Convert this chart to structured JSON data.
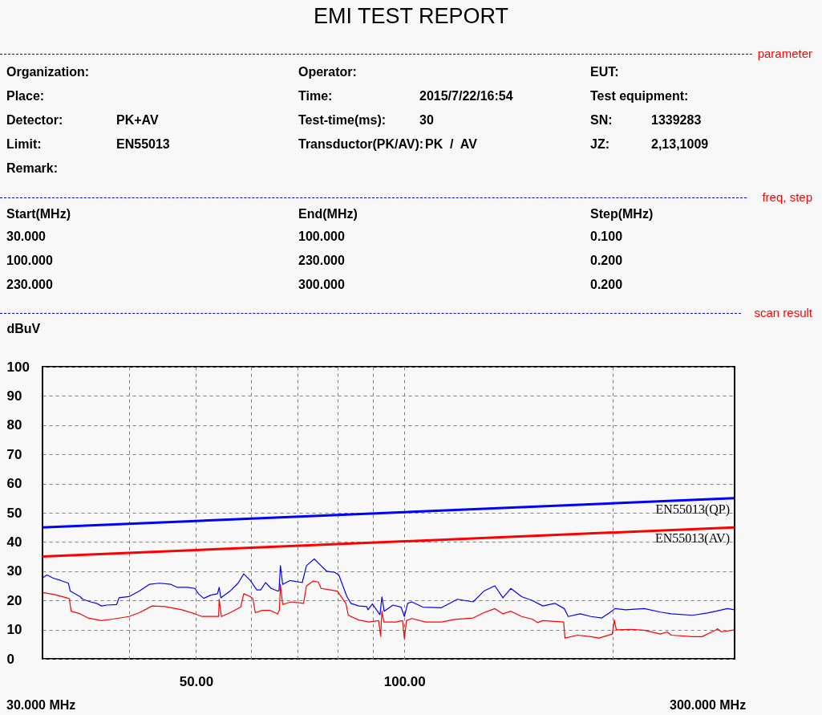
{
  "chart_data": {
    "type": "line",
    "title": "EMI TEST REPORT",
    "ylabel": "dBuV",
    "annotations": [
      "parameter",
      "Organization:",
      "Operator:",
      "EUT:",
      "Place:",
      "Time:",
      "2015/7/22/16:54",
      "Test equipment:",
      "Detector:",
      "PK+AV",
      "Test-time(ms):",
      "30",
      "SN:",
      "1339283",
      "Limit:",
      "EN55013",
      "Transductor(PK/AV):",
      "PK  /  AV",
      "JZ:",
      "2,13,1009",
      "Remark:",
      "freq, step",
      "Start(MHz)",
      "End(MHz)",
      "Step(MHz)",
      "30.000",
      "100.000",
      "0.100",
      "100.000",
      "230.000",
      "0.200",
      "230.000",
      "300.000",
      "0.200",
      "scan result",
      "30.000 MHz",
      "300.000 MHz"
    ],
    "xlim": [
      30,
      300
    ],
    "xticks": [
      {
        "value": 40,
        "label": null
      },
      {
        "value": 50,
        "label": "50.00"
      },
      {
        "value": 60,
        "label": null
      },
      {
        "value": 70,
        "label": null
      },
      {
        "value": 80,
        "label": null
      },
      {
        "value": 90,
        "label": null
      },
      {
        "value": 100,
        "label": "100.00"
      },
      {
        "value": 200,
        "label": null
      }
    ],
    "ylim": [
      0,
      100
    ],
    "yticks": [
      0,
      10,
      20,
      30,
      40,
      50,
      60,
      70,
      80,
      90,
      100
    ],
    "log": "x",
    "grid": true,
    "marker": "none",
    "line_style": "solid",
    "series": [
      {
        "name": "EN55013(QP)",
        "color": "#0000ff",
        "x": [
          30,
          300
        ],
        "values": [
          45,
          55
        ]
      },
      {
        "name": "EN55013(AV)",
        "color": "#ff0000",
        "x": [
          30,
          300
        ],
        "values": [
          35,
          45
        ]
      },
      {
        "color": "#0000ff",
        "x": [
          30,
          30.45,
          31.1,
          31.9,
          32.7,
          32.9,
          33.4,
          34.0,
          34.3,
          35.2,
          35.9,
          36.5,
          37.2,
          38.4,
          38.7,
          40.0,
          41.4,
          42.8,
          44.3,
          46.0,
          46.9,
          48.6,
          49.8,
          50.4,
          51.3,
          52.5,
          53.7,
          54.0,
          54.3,
          56.0,
          57.5,
          58.6,
          59.9,
          61.2,
          62.0,
          63.0,
          64.2,
          65.6,
          65.9,
          66.2,
          66.7,
          68.3,
          71.2,
          72.2,
          74.1,
          75.1,
          77.2,
          79.3,
          80.4,
          82.6,
          83.7,
          85.9,
          88.2,
          88.6,
          89.9,
          92.2,
          92.8,
          93.5,
          96.3,
          98.9,
          100,
          101.1,
          102.5,
          106.3,
          113.1,
          119.3,
          125.7,
          130.3,
          135.1,
          138.8,
          142.5,
          147.7,
          153.0,
          158.5,
          165.0,
          170.2,
          172.5,
          179.5,
          186.0,
          192.8,
          198.0,
          201.5,
          208.8,
          222.2,
          234.4,
          242.9,
          260.9,
          274.0,
          282.0,
          292.9,
          300
        ],
        "values": [
          27.7,
          28.7,
          27.6,
          26.8,
          25.9,
          23.2,
          22.3,
          21.3,
          20.4,
          19.5,
          19.0,
          18.1,
          18.4,
          18.6,
          20.9,
          21.3,
          23.2,
          25.5,
          25.9,
          25.5,
          24.5,
          24.5,
          24.1,
          22.3,
          20.7,
          21.8,
          22.3,
          24.5,
          20.9,
          23.2,
          25.9,
          29.1,
          26.8,
          23.6,
          23.6,
          26.1,
          24.1,
          23.2,
          23.4,
          31.9,
          25.5,
          26.8,
          26.1,
          31.9,
          34.2,
          32.8,
          30.0,
          29.6,
          28.7,
          21.3,
          19.0,
          18.1,
          17.9,
          16.8,
          18.8,
          15.1,
          21.2,
          16.3,
          18.4,
          17.7,
          14.5,
          19.0,
          19.5,
          17.7,
          17.5,
          20.4,
          19.5,
          23.2,
          25.0,
          20.9,
          24.1,
          21.3,
          20.0,
          18.1,
          19.0,
          17.2,
          14.5,
          15.4,
          14.5,
          14.0,
          15.8,
          17.2,
          16.8,
          17.2,
          16.0,
          15.4,
          14.9,
          15.7,
          16.3,
          17.2,
          16.8
        ]
      },
      {
        "color": "#ff0000",
        "x": [
          30,
          31.1,
          32.5,
          32.8,
          33.0,
          34.0,
          34.9,
          36.5,
          37.9,
          40.0,
          41.4,
          43.2,
          45.1,
          47.7,
          49.8,
          51.0,
          53.5,
          53.9,
          54.0,
          54.4,
          56.0,
          58.0,
          58.6,
          59.9,
          60.4,
          60.9,
          62.3,
          63.9,
          65.6,
          66.0,
          66.2,
          66.7,
          68.6,
          71.5,
          72.2,
          73.8,
          75.1,
          75.8,
          78.5,
          80.0,
          82.3,
          83.0,
          85.9,
          88.9,
          91.8,
          92.4,
          92.8,
          93.4,
          97.2,
          99.4,
          100,
          100.7,
          102.5,
          107.3,
          113.1,
          118.3,
          125.7,
          130.3,
          135.1,
          138.8,
          142.5,
          147.7,
          153.0,
          155.7,
          158.5,
          169.9,
          170.6,
          178.0,
          186.0,
          191.0,
          199.7,
          201.1,
          202.4,
          212.6,
          222.2,
          234.4,
          239.7,
          242.9,
          260.9,
          269.2,
          282.0,
          283.4,
          287.2,
          300
        ],
        "values": [
          22.7,
          22.1,
          20.9,
          20.6,
          16.3,
          15.4,
          14.0,
          13.1,
          13.6,
          14.5,
          15.8,
          18.1,
          17.9,
          16.8,
          15.4,
          14.5,
          14.5,
          14.5,
          20.4,
          14.5,
          15.8,
          17.7,
          22.3,
          21.3,
          20.6,
          15.8,
          16.6,
          16.6,
          15.4,
          16.8,
          25.5,
          18.6,
          19.5,
          19.0,
          25.0,
          26.6,
          26.3,
          24.1,
          23.5,
          23.2,
          19.0,
          14.9,
          13.3,
          12.6,
          13.1,
          7.8,
          16.3,
          12.6,
          12.6,
          13.1,
          6.9,
          13.1,
          13.8,
          12.6,
          12.6,
          13.5,
          14.0,
          15.8,
          17.2,
          15.4,
          16.3,
          14.5,
          13.6,
          12.4,
          13.1,
          12.6,
          7.1,
          8.1,
          7.6,
          7.1,
          8.5,
          13.3,
          9.9,
          10.1,
          9.8,
          8.5,
          9.2,
          8.1,
          7.6,
          7.6,
          9.9,
          10.3,
          9.2,
          9.9
        ]
      }
    ]
  }
}
